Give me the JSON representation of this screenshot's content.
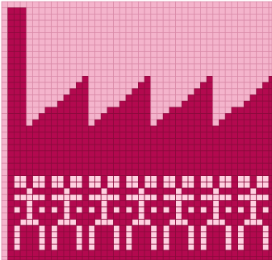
{
  "colors": {
    "background": "#ffffff",
    "light_cell": "#f4b4cc",
    "light_grid": "#d98aa8",
    "dark_cell": "#b3094f",
    "dark_grid": "#8a0a3c",
    "figure_cell": "#ffd0e0"
  },
  "pattern": {
    "motifs": [
      "factory-sawtooth-roof",
      "dancing-figures-row"
    ],
    "figure_count": 7
  }
}
